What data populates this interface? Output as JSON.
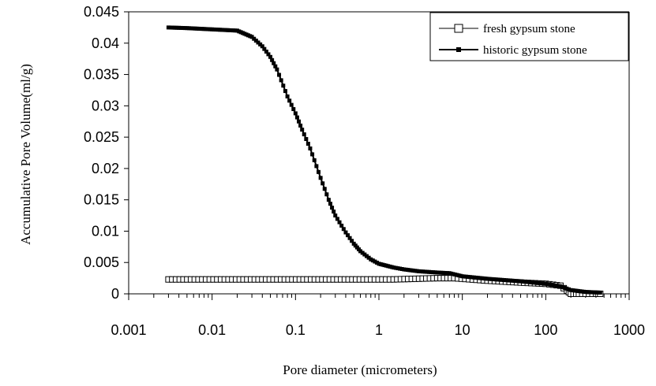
{
  "chart_data": {
    "type": "scatter",
    "title": "",
    "xlabel": "Pore diameter  (micrometers)",
    "ylabel": "Accumulative Pore Volume(ml/g)",
    "x_scale": "log",
    "xlim": [
      0.001,
      1000
    ],
    "ylim": [
      0,
      0.045
    ],
    "x_ticks": [
      0.001,
      0.01,
      0.1,
      1,
      10,
      100,
      1000
    ],
    "x_tick_labels": [
      "0.001",
      "0.01",
      "0.1",
      "1",
      "10",
      "100",
      "1000"
    ],
    "y_ticks": [
      0,
      0.005,
      0.01,
      0.015,
      0.02,
      0.025,
      0.03,
      0.035,
      0.04,
      0.045
    ],
    "y_tick_labels": [
      "0",
      "0.005",
      "0.01",
      "0.015",
      "0.02",
      "0.025",
      "0.03",
      "0.035",
      "0.04",
      "0.045"
    ],
    "grid": false,
    "legend_position": "top-right",
    "series": [
      {
        "name": "fresh gypsum stone",
        "marker": "open-square",
        "color": "#000000",
        "x": [
          0.003,
          1.5,
          5,
          8,
          20,
          50,
          100,
          150,
          180,
          200,
          250,
          300,
          400,
          450
        ],
        "y": [
          0.0023,
          0.0023,
          0.0025,
          0.0025,
          0.0021,
          0.0018,
          0.0016,
          0.0013,
          0.0005,
          0.0,
          0.0,
          0.0,
          0.0,
          0.0
        ]
      },
      {
        "name": "historic gypsum stone",
        "marker": "filled-square",
        "color": "#000000",
        "x": [
          0.003,
          0.005,
          0.01,
          0.02,
          0.03,
          0.04,
          0.05,
          0.06,
          0.08,
          0.1,
          0.12,
          0.15,
          0.2,
          0.25,
          0.3,
          0.4,
          0.5,
          0.6,
          0.8,
          1,
          1.5,
          2,
          3,
          5,
          7,
          10,
          20,
          50,
          100,
          150,
          200,
          300,
          450
        ],
        "y": [
          0.0425,
          0.0424,
          0.0422,
          0.042,
          0.041,
          0.0395,
          0.0378,
          0.0358,
          0.0315,
          0.0288,
          0.0262,
          0.0232,
          0.0185,
          0.015,
          0.0125,
          0.0098,
          0.008,
          0.0068,
          0.0055,
          0.0048,
          0.0042,
          0.0039,
          0.0036,
          0.0034,
          0.0033,
          0.0028,
          0.0024,
          0.002,
          0.0016,
          0.0012,
          0.0006,
          0.0003,
          0.0002
        ]
      }
    ]
  }
}
